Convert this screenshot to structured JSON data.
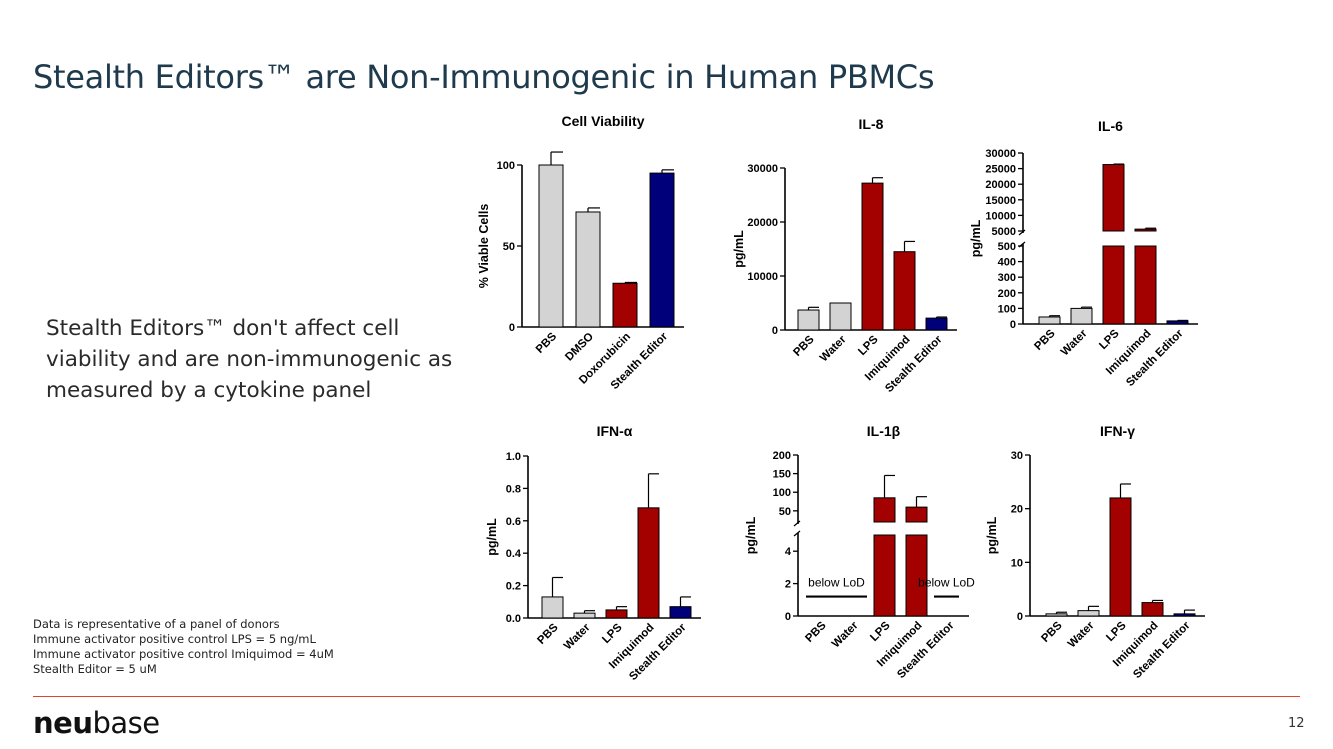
{
  "slide": {
    "title": "Stealth Editors™ are Non-Immunogenic in Human PBMCs",
    "summary": "Stealth Editors™ don't affect cell viability and are non-immunogenic as measured by a cytokine panel",
    "footnotes": [
      "Data is representative of a panel of donors",
      "Immune activator positive control LPS = 5 ng/mL",
      "Immune activator positive control Imiquimod = 4uM",
      "Stealth Editor = 5 uM"
    ],
    "logo_bold": "neu",
    "logo_light": "base",
    "page_number": "12"
  },
  "colors": {
    "gray": "#d3d3d3",
    "red": "#a30000",
    "navy": "#00007a",
    "accent": "#e0442f",
    "title": "#1e3a4c"
  },
  "chart_data": [
    {
      "id": "cell-viability",
      "type": "bar",
      "title": "Cell Viability",
      "ylabel": "% Viable Cells",
      "categories": [
        "PBS",
        "DMSO",
        "Doxorubicin",
        "Stealth Editor"
      ],
      "values": [
        100,
        71,
        27,
        95
      ],
      "errors": [
        8,
        2.5,
        0.5,
        2
      ],
      "colors": [
        "gray",
        "gray",
        "red",
        "navy"
      ],
      "ylim": [
        0,
        100
      ],
      "ticks": [
        0,
        50,
        100
      ],
      "tick_labels": [
        "0",
        "50",
        "100"
      ]
    },
    {
      "id": "il-8",
      "type": "bar",
      "title": "IL-8",
      "ylabel": "pg/mL",
      "categories": [
        "PBS",
        "Water",
        "LPS",
        "Imiquimod",
        "Stealth Editor"
      ],
      "values": [
        3700,
        5000,
        27200,
        14500,
        2200
      ],
      "errors": [
        500,
        0,
        1000,
        1900,
        200
      ],
      "colors": [
        "gray",
        "gray",
        "red",
        "red",
        "navy"
      ],
      "ylim": [
        0,
        30000
      ],
      "ticks": [
        0,
        10000,
        20000,
        30000
      ],
      "tick_labels": [
        "0",
        "10000",
        "20000",
        "30000"
      ]
    },
    {
      "id": "il-6",
      "type": "bar",
      "title": "IL-6",
      "ylabel": "pg/mL",
      "categories": [
        "PBS",
        "Water",
        "LPS",
        "Imiquimod",
        "Stealth Editor"
      ],
      "values": [
        45,
        100,
        26300,
        5600,
        20
      ],
      "errors": [
        8,
        8,
        150,
        300,
        3
      ],
      "colors": [
        "gray",
        "gray",
        "red",
        "red",
        "navy"
      ],
      "broken_axis": {
        "lower": [
          0,
          500
        ],
        "upper": [
          5000,
          30000
        ],
        "lower_ticks": [
          0,
          100,
          200,
          300,
          400,
          500
        ],
        "upper_ticks": [
          5000,
          10000,
          15000,
          20000,
          25000,
          30000
        ]
      },
      "tick_labels_lower": [
        "0",
        "100",
        "200",
        "300",
        "400",
        "500"
      ],
      "tick_labels_upper": [
        "5000",
        "10000",
        "15000",
        "20000",
        "25000",
        "30000"
      ]
    },
    {
      "id": "ifn-alpha",
      "type": "bar",
      "title": "IFN-α",
      "ylabel": "pg/mL",
      "categories": [
        "PBS",
        "Water",
        "LPS",
        "Imiquimod",
        "Stealth Editor"
      ],
      "values": [
        0.13,
        0.03,
        0.05,
        0.68,
        0.07
      ],
      "errors": [
        0.12,
        0.015,
        0.02,
        0.21,
        0.06
      ],
      "colors": [
        "gray",
        "gray",
        "red",
        "red",
        "navy"
      ],
      "ylim": [
        0,
        1.0
      ],
      "ticks": [
        0,
        0.2,
        0.4,
        0.6,
        0.8,
        1.0
      ],
      "tick_labels": [
        "0.0",
        "0.2",
        "0.4",
        "0.6",
        "0.8",
        "1.0"
      ]
    },
    {
      "id": "il-1b",
      "type": "bar",
      "title": "IL-1β",
      "ylabel": "pg/mL",
      "categories": [
        "PBS",
        "Water",
        "LPS",
        "Imiquimod",
        "Stealth Editor"
      ],
      "values": [
        null,
        null,
        85,
        60,
        null
      ],
      "errors": [
        null,
        null,
        60,
        28,
        null
      ],
      "colors": [
        "gray",
        "gray",
        "red",
        "red",
        "navy"
      ],
      "broken_axis": {
        "lower": [
          0,
          5
        ],
        "upper": [
          20,
          200
        ],
        "lower_ticks": [
          0,
          2,
          4
        ],
        "upper_ticks": [
          50,
          100,
          150,
          200
        ]
      },
      "tick_labels_lower": [
        "0",
        "2",
        "4"
      ],
      "tick_labels_upper": [
        "50",
        "100",
        "150",
        "200"
      ],
      "annotations": [
        {
          "text": "below LoD",
          "from": "PBS",
          "to": "Water",
          "value": 1.2
        },
        {
          "text": "below LoD",
          "from": "Stealth Editor",
          "to": "Stealth Editor",
          "value": 1.2
        }
      ]
    },
    {
      "id": "ifn-gamma",
      "type": "bar",
      "title": "IFN-γ",
      "ylabel": "pg/mL",
      "categories": [
        "PBS",
        "Water",
        "LPS",
        "Imiquimod",
        "Stealth Editor"
      ],
      "values": [
        0.4,
        1.0,
        22,
        2.5,
        0.4
      ],
      "errors": [
        0.3,
        0.8,
        2.6,
        0.4,
        0.7
      ],
      "colors": [
        "gray",
        "gray",
        "red",
        "red",
        "navy"
      ],
      "ylim": [
        0,
        30
      ],
      "ticks": [
        0,
        10,
        20,
        30
      ],
      "tick_labels": [
        "0",
        "10",
        "20",
        "30"
      ]
    }
  ]
}
